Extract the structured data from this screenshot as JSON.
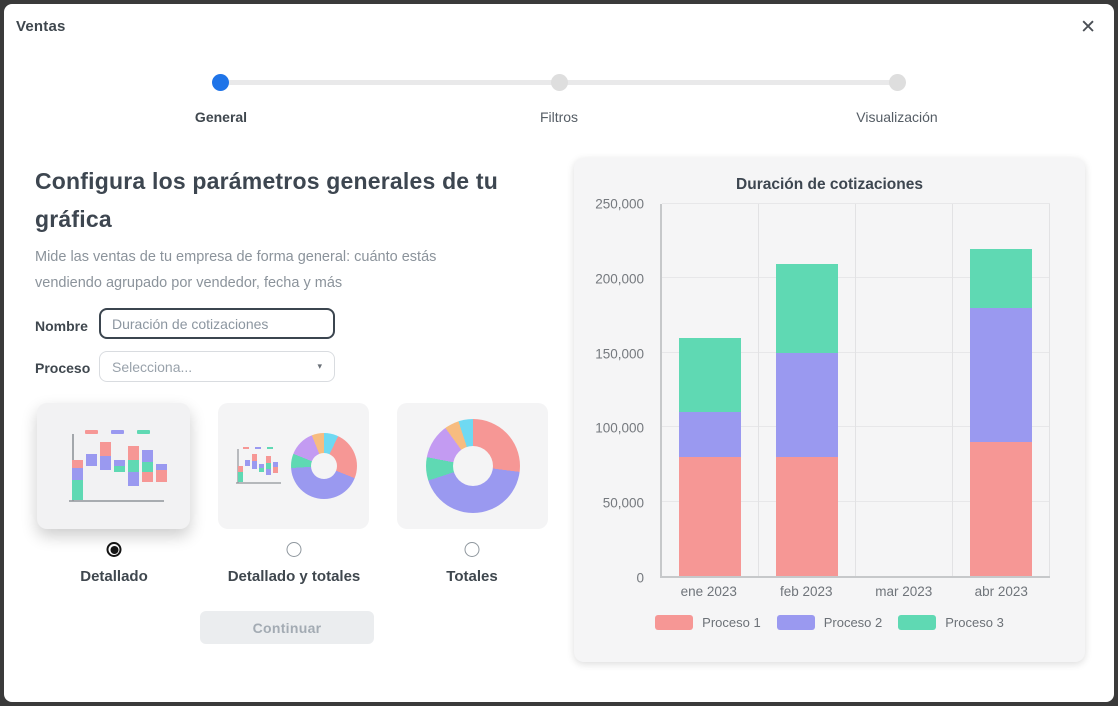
{
  "modal": {
    "title": "Ventas"
  },
  "icons": {
    "close": "✕",
    "caret": "▾"
  },
  "stepper": {
    "steps": [
      {
        "label": "General",
        "active": true
      },
      {
        "label": "Filtros",
        "active": false
      },
      {
        "label": "Visualización",
        "active": false
      }
    ]
  },
  "form": {
    "heading": "Configura los parámetros generales de tu gráfica",
    "description": "Mide las ventas de tu empresa de forma general: cuánto estás vendiendo agrupado por vendedor, fecha y más",
    "name_label": "Nombre",
    "name_value": "Duración de cotizaciones",
    "process_label": "Proceso",
    "process_placeholder": "Selecciona...",
    "chart_types": [
      {
        "label": "Detallado",
        "selected": true
      },
      {
        "label": "Detallado y totales",
        "selected": false
      },
      {
        "label": "Totales",
        "selected": false
      }
    ],
    "continue_label": "Continuar"
  },
  "chart_data": {
    "type": "bar",
    "stacked": true,
    "title": "Duración de cotizaciones",
    "categories": [
      "ene 2023",
      "feb 2023",
      "mar 2023",
      "abr 2023"
    ],
    "series": [
      {
        "name": "Proceso 1",
        "color": "#f69795",
        "values": [
          80000,
          80000,
          0,
          90000
        ]
      },
      {
        "name": "Proceso 2",
        "color": "#9a99f0",
        "values": [
          30000,
          70000,
          0,
          90000
        ]
      },
      {
        "name": "Proceso 3",
        "color": "#5fd9b3",
        "values": [
          50000,
          60000,
          0,
          40000
        ]
      }
    ],
    "ylim": [
      0,
      250000
    ],
    "ytick_labels": [
      "0",
      "50,000",
      "100,000",
      "150,000",
      "200,000",
      "250,000"
    ],
    "grid": true,
    "legend_position": "bottom"
  }
}
